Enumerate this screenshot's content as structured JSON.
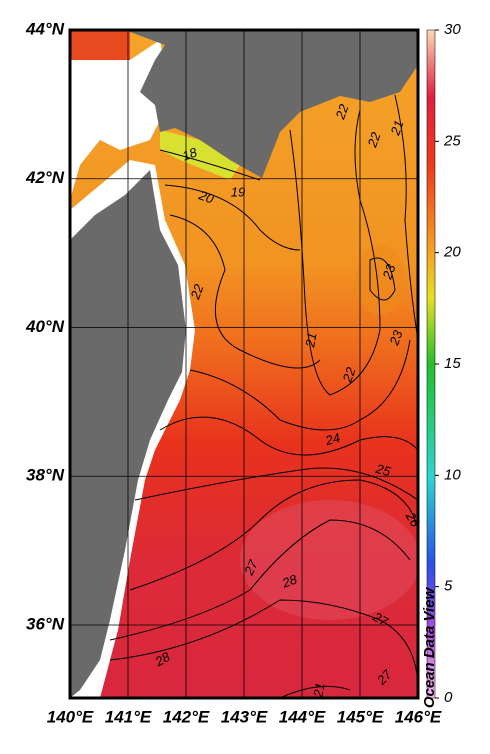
{
  "map": {
    "x_labels": [
      "140°E",
      "141°E",
      "142°E",
      "143°E",
      "144°E",
      "145°E",
      "146°E"
    ],
    "y_labels": [
      "36°N",
      "38°N",
      "40°N",
      "42°N",
      "44°N"
    ],
    "colorbar": {
      "range": [
        0,
        30
      ],
      "ticks": [
        0,
        5,
        10,
        15,
        20,
        25,
        30
      ]
    },
    "contour_labels": [
      18,
      19,
      20,
      22,
      22,
      21,
      22,
      23,
      21,
      22,
      23,
      24,
      25,
      26,
      27,
      28,
      28,
      27,
      27,
      21
    ],
    "credit": "Ocean Data View"
  }
}
